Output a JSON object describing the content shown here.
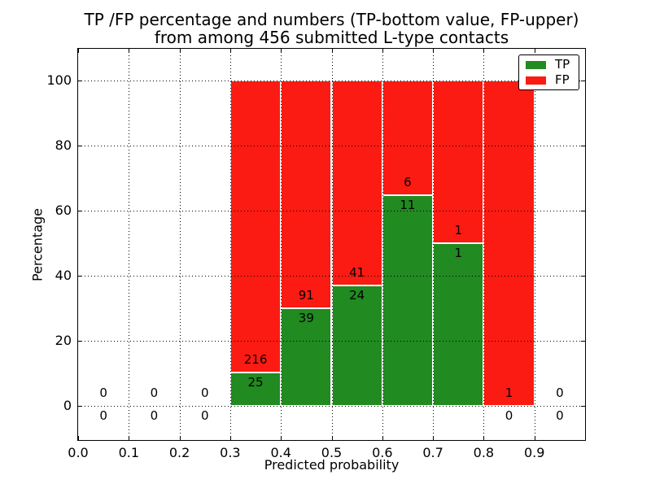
{
  "titles": {
    "line1": "TP /FP percentage and numbers (TP-bottom value, FP-upper)",
    "line2": "from among 456 submitted L-type contacts"
  },
  "axes": {
    "xlabel": "Predicted probability",
    "ylabel": "Percentage"
  },
  "legend": {
    "items": [
      {
        "label": "TP",
        "color": "#218a21"
      },
      {
        "label": "FP",
        "color": "#fb1b12"
      }
    ]
  },
  "chart_data": {
    "type": "bar",
    "stacked": true,
    "title": "TP /FP percentage and numbers (TP-bottom value, FP-upper) from among 456 submitted L-type contacts",
    "xlabel": "Predicted probability",
    "ylabel": "Percentage",
    "values_are": "bar heights are percent of bin total (TP+FP); numeric labels show raw counts (TP bottom value, FP upper)",
    "bin_edges": [
      0.0,
      0.1,
      0.2,
      0.3,
      0.4,
      0.5,
      0.6,
      0.7,
      0.8,
      0.9,
      1.0
    ],
    "x_tick_labels": [
      "0.0",
      "0.1",
      "0.2",
      "0.3",
      "0.4",
      "0.5",
      "0.6",
      "0.7",
      "0.8",
      "0.9"
    ],
    "y_tick_labels": [
      "0",
      "20",
      "40",
      "60",
      "80",
      "100"
    ],
    "series": [
      {
        "name": "TP",
        "color": "#218a21",
        "counts": [
          0,
          0,
          0,
          25,
          39,
          24,
          11,
          1,
          0,
          0
        ]
      },
      {
        "name": "FP",
        "color": "#fb1b12",
        "counts": [
          0,
          0,
          0,
          216,
          91,
          41,
          6,
          1,
          1,
          0
        ]
      }
    ],
    "tp_percent_by_bin": [
      0,
      0,
      0,
      10.37,
      30.0,
      36.92,
      64.71,
      50.0,
      0.0,
      0
    ],
    "total_submitted": 456,
    "xlim": [
      0.0,
      1.0
    ],
    "ylim": [
      -10.5,
      109.7
    ],
    "grid": "dotted",
    "legend_position": "upper right"
  }
}
